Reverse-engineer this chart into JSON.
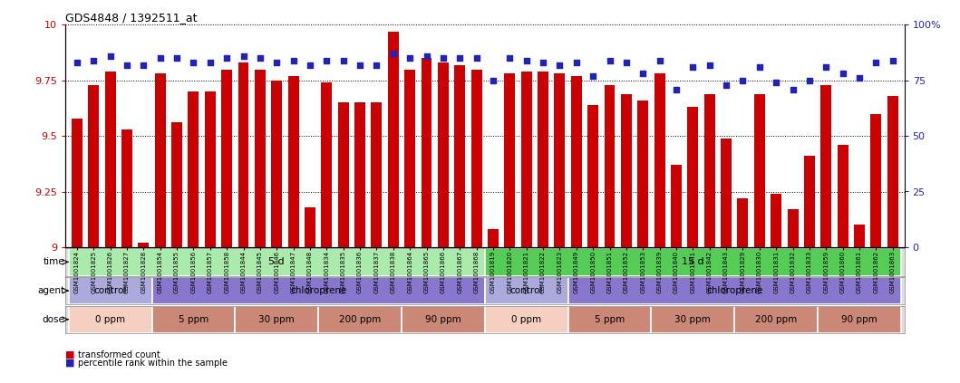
{
  "title": "GDS4848 / 1392511_at",
  "samples": [
    "GSM1001824",
    "GSM1001825",
    "GSM1001826",
    "GSM1001827",
    "GSM1001828",
    "GSM1001854",
    "GSM1001855",
    "GSM1001856",
    "GSM1001857",
    "GSM1001858",
    "GSM1001844",
    "GSM1001845",
    "GSM1001846",
    "GSM1001847",
    "GSM1001848",
    "GSM1001834",
    "GSM1001835",
    "GSM1001836",
    "GSM1001837",
    "GSM1001838",
    "GSM1001864",
    "GSM1001865",
    "GSM1001866",
    "GSM1001867",
    "GSM1001868",
    "GSM1001819",
    "GSM1001820",
    "GSM1001821",
    "GSM1001822",
    "GSM1001823",
    "GSM1001849",
    "GSM1001850",
    "GSM1001851",
    "GSM1001852",
    "GSM1001853",
    "GSM1001839",
    "GSM1001840",
    "GSM1001841",
    "GSM1001842",
    "GSM1001843",
    "GSM1001829",
    "GSM1001830",
    "GSM1001831",
    "GSM1001832",
    "GSM1001833",
    "GSM1001859",
    "GSM1001860",
    "GSM1001861",
    "GSM1001862",
    "GSM1001863"
  ],
  "bar_values": [
    9.58,
    9.73,
    9.79,
    9.53,
    9.02,
    9.78,
    9.56,
    9.7,
    9.7,
    9.8,
    9.83,
    9.8,
    9.75,
    9.77,
    9.18,
    9.74,
    9.65,
    9.65,
    9.65,
    9.97,
    9.8,
    9.85,
    9.83,
    9.82,
    9.8,
    9.08,
    9.78,
    9.79,
    9.79,
    9.78,
    9.77,
    9.64,
    9.73,
    9.69,
    9.66,
    9.78,
    9.37,
    9.63,
    9.69,
    9.49,
    9.22,
    9.69,
    9.24,
    9.17,
    9.41,
    9.73,
    9.46,
    9.1,
    9.6,
    9.68
  ],
  "percentile_values": [
    83,
    84,
    86,
    82,
    82,
    85,
    85,
    83,
    83,
    85,
    86,
    85,
    83,
    84,
    82,
    84,
    84,
    82,
    82,
    87,
    85,
    86,
    85,
    85,
    85,
    75,
    85,
    84,
    83,
    82,
    83,
    77,
    84,
    83,
    78,
    84,
    71,
    81,
    82,
    73,
    75,
    81,
    74,
    71,
    75,
    81,
    78,
    76,
    83,
    84
  ],
  "ylim": [
    9.0,
    10.0
  ],
  "yticks": [
    9.0,
    9.25,
    9.5,
    9.75,
    10.0
  ],
  "ytick_labels": [
    "9",
    "9.25",
    "9.5",
    "9.75",
    "10"
  ],
  "y2lim": [
    0,
    100
  ],
  "y2ticks": [
    0,
    25,
    50,
    75,
    100
  ],
  "y2tick_labels": [
    "0",
    "25",
    "50",
    "75",
    "100%"
  ],
  "bar_color": "#cc0000",
  "dot_color": "#2222bb",
  "bar_width": 0.65,
  "time_groups": [
    {
      "label": "5 d",
      "start": 0,
      "end": 24,
      "color": "#aaeaaa"
    },
    {
      "label": "15 d",
      "start": 25,
      "end": 49,
      "color": "#55cc55"
    }
  ],
  "agent_groups": [
    {
      "label": "control",
      "start": 0,
      "end": 4,
      "color": "#aaaadd"
    },
    {
      "label": "chloroprene",
      "start": 5,
      "end": 24,
      "color": "#8877cc"
    },
    {
      "label": "control",
      "start": 25,
      "end": 29,
      "color": "#aaaadd"
    },
    {
      "label": "chloroprene",
      "start": 30,
      "end": 49,
      "color": "#8877cc"
    }
  ],
  "dose_groups": [
    {
      "label": "0 ppm",
      "start": 0,
      "end": 4,
      "color": "#f5d0c0"
    },
    {
      "label": "5 ppm",
      "start": 5,
      "end": 9,
      "color": "#cc8877"
    },
    {
      "label": "30 ppm",
      "start": 10,
      "end": 14,
      "color": "#cc8877"
    },
    {
      "label": "200 ppm",
      "start": 15,
      "end": 19,
      "color": "#cc8877"
    },
    {
      "label": "90 ppm",
      "start": 20,
      "end": 24,
      "color": "#cc8877"
    },
    {
      "label": "0 ppm",
      "start": 25,
      "end": 29,
      "color": "#f5d0c0"
    },
    {
      "label": "5 ppm",
      "start": 30,
      "end": 34,
      "color": "#cc8877"
    },
    {
      "label": "30 ppm",
      "start": 35,
      "end": 39,
      "color": "#cc8877"
    },
    {
      "label": "200 ppm",
      "start": 40,
      "end": 44,
      "color": "#cc8877"
    },
    {
      "label": "90 ppm",
      "start": 45,
      "end": 49,
      "color": "#cc8877"
    }
  ],
  "legend_items": [
    {
      "label": "transformed count",
      "color": "#cc0000"
    },
    {
      "label": "percentile rank within the sample",
      "color": "#2222bb"
    }
  ]
}
